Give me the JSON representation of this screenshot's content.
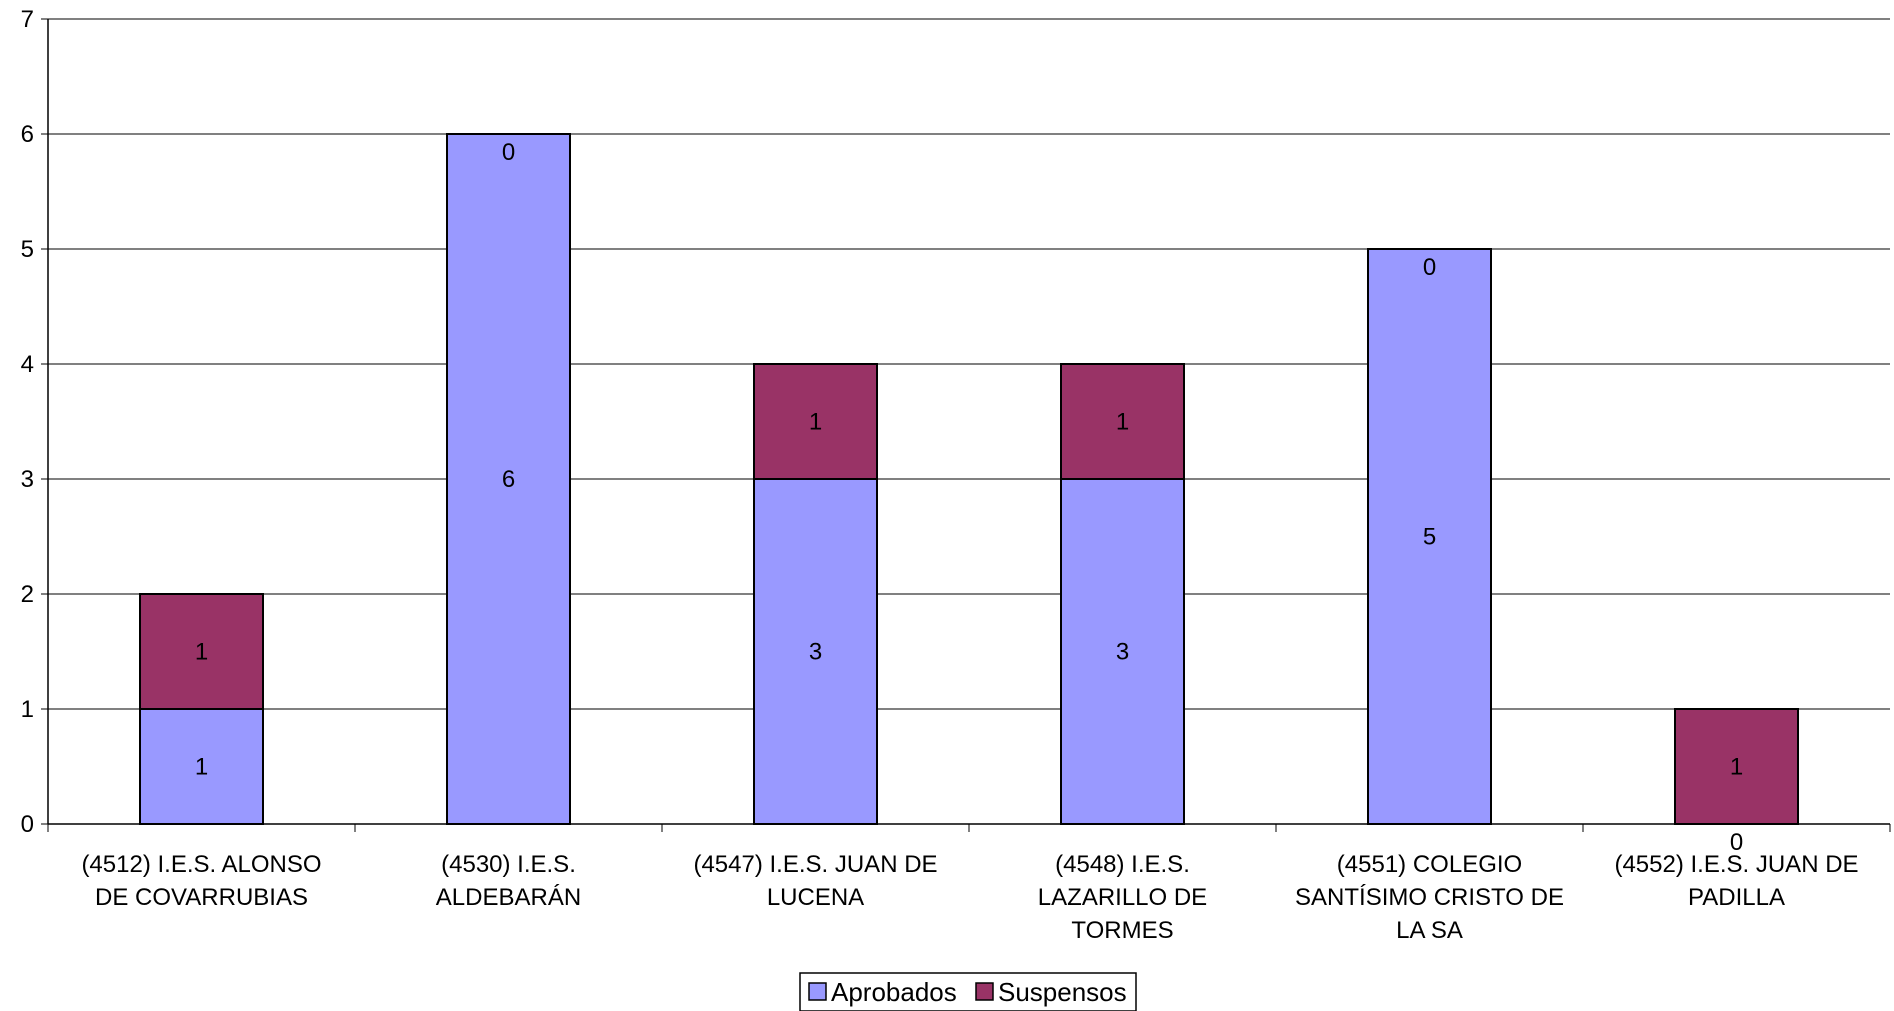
{
  "chart_data": {
    "type": "bar",
    "stacked": true,
    "categories": [
      "(4512) I.E.S. ALONSO DE COVARRUBIAS",
      "(4530) I.E.S. ALDEBARÁN",
      "(4547) I.E.S. JUAN DE LUCENA",
      "(4548) I.E.S. LAZARILLO DE TORMES",
      "(4551) COLEGIO SANTÍSIMO CRISTO DE LA SA",
      "(4552) I.E.S. JUAN DE PADILLA"
    ],
    "category_lines": [
      [
        "(4512) I.E.S. ALONSO",
        "DE COVARRUBIAS"
      ],
      [
        "(4530) I.E.S.",
        "ALDEBARÁN"
      ],
      [
        "(4547) I.E.S. JUAN DE",
        "LUCENA"
      ],
      [
        "(4548) I.E.S.",
        "LAZARILLO DE",
        "TORMES"
      ],
      [
        "(4551) COLEGIO",
        "SANTÍSIMO CRISTO DE",
        "LA SA"
      ],
      [
        "(4552) I.E.S. JUAN DE",
        "PADILLA"
      ]
    ],
    "series": [
      {
        "name": "Aprobados",
        "values": [
          1,
          6,
          3,
          3,
          5,
          0
        ],
        "color": "#9999ff"
      },
      {
        "name": "Suspensos",
        "values": [
          1,
          0,
          1,
          1,
          0,
          1
        ],
        "color": "#993366"
      }
    ],
    "ylim": [
      0,
      7
    ],
    "yticks": [
      "0",
      "1",
      "2",
      "3",
      "4",
      "5",
      "6",
      "7"
    ],
    "grid": true,
    "legend_position": "bottom-center",
    "title": "",
    "xlabel": "",
    "ylabel": ""
  }
}
